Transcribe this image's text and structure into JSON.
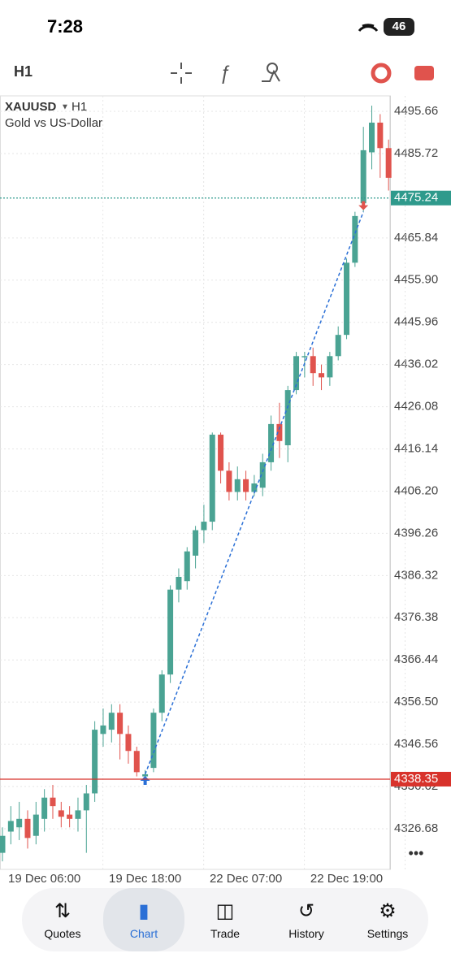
{
  "status_bar": {
    "time": "7:28",
    "battery": "46"
  },
  "toolbar": {
    "timeframe": "H1"
  },
  "chart_data": {
    "type": "candlestick",
    "symbol": "XAUUSD",
    "timeframe": "H1",
    "description": "Gold vs US-Dollar",
    "categories": [
      null,
      null,
      null,
      null,
      null,
      "19 Dec 06:00",
      null,
      null,
      null,
      null,
      null,
      null,
      null,
      null,
      null,
      null,
      null,
      "19 Dec 18:00",
      null,
      null,
      null,
      null,
      null,
      null,
      null,
      null,
      null,
      null,
      null,
      "22 Dec 07:00",
      null,
      null,
      null,
      null,
      null,
      null,
      null,
      null,
      null,
      null,
      null,
      "22 Dec 19:00",
      null,
      null,
      null,
      null,
      null
    ],
    "open": [
      4321,
      4326,
      4327,
      4329,
      4325,
      4329,
      4334,
      4331,
      4330,
      4329,
      4331,
      4335,
      4349,
      4350,
      4354,
      4349,
      4345,
      4339,
      4341,
      4354,
      4363,
      4383,
      4385,
      4391,
      4397,
      4399,
      4419.5,
      4411,
      4406,
      4409,
      4406,
      4407,
      4413,
      4422,
      4417,
      4430,
      4438,
      4438,
      4434,
      4433,
      4438,
      4443,
      4460,
      4474,
      4486,
      4493,
      4487
    ],
    "high": [
      4327,
      4332,
      4333,
      4331,
      4333,
      4336,
      4337,
      4333,
      4332,
      4334,
      4337,
      4352,
      4355,
      4356,
      4356,
      4351,
      4346,
      4340.5,
      4355,
      4364,
      4384,
      4388,
      4393,
      4398,
      4403,
      4420,
      4420,
      4413,
      4412,
      4411,
      4410,
      4415,
      4424,
      4427,
      4431,
      4439,
      4439,
      4440,
      4436,
      4439,
      4445,
      4461,
      4472,
      4492,
      4497,
      4495,
      4489
    ],
    "low": [
      4319,
      4323,
      4324,
      4322,
      4323,
      4326,
      4329,
      4327,
      4327,
      4326,
      4321,
      4333,
      4346,
      4347,
      4343,
      4342,
      4339,
      4338,
      4340,
      4352,
      4361,
      4380,
      4383,
      4388,
      4394,
      4397,
      4408,
      4404,
      4404,
      4404,
      4405,
      4405,
      4411,
      4414,
      4413,
      4429,
      4433,
      4431,
      4430,
      4431,
      4437,
      4442,
      4459,
      4472,
      4482,
      4480,
      4477
    ],
    "close": [
      4325,
      4328.5,
      4329,
      4324.5,
      4330,
      4334,
      4332,
      4329.5,
      4329,
      4331,
      4335,
      4350,
      4351,
      4354,
      4349,
      4345,
      4340,
      4339.5,
      4354,
      4363,
      4383,
      4386,
      4392,
      4397,
      4399,
      4419.5,
      4411,
      4406,
      4409,
      4406,
      4408,
      4413,
      4422,
      4418,
      4430,
      4438,
      4438,
      4434,
      4433,
      4438,
      4443,
      4460,
      4471,
      4486.5,
      4493,
      4487,
      4480
    ],
    "up_color": "#4aa393",
    "down_color": "#e0534d",
    "ylim": [
      4317.1,
      4499.3
    ],
    "yticks": [
      4495.66,
      4485.72,
      4465.84,
      {
        "value": 4455.9,
        "label": "4455.90"
      },
      4445.96,
      4436.02,
      4426.08,
      4416.14,
      {
        "value": 4406.2,
        "label": "4406.20"
      },
      4396.26,
      4386.32,
      4376.38,
      4366.44,
      {
        "value": 4356.5,
        "label": "4356.50"
      },
      4346.56,
      4336.62,
      4326.68
    ],
    "grid": true,
    "price_lines": [
      {
        "value": 4475.24,
        "label": "4475.24",
        "color": "#2f9a8c",
        "dashed": true
      },
      {
        "value": 4338.35,
        "label": "4338.35",
        "color": "#d8322b",
        "dashed": false
      }
    ],
    "trade_line": {
      "from": [
        17,
        4339.5
      ],
      "to": [
        43,
        4472
      ],
      "color": "#2a6fd6"
    }
  },
  "nav": {
    "items": [
      "Quotes",
      "Chart",
      "Trade",
      "History",
      "Settings"
    ],
    "active": 1
  }
}
